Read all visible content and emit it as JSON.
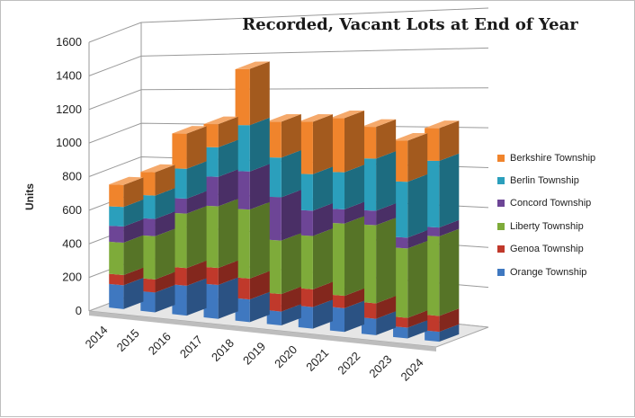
{
  "chart_data": {
    "type": "bar",
    "stacked": true,
    "three_d": true,
    "title": "Recorded, Vacant Lots at End of Year",
    "ylabel": "Units",
    "xlabel": "",
    "ylim": [
      0,
      1600
    ],
    "yticks": [
      "0",
      "200",
      "400",
      "600",
      "800",
      "1000",
      "1200",
      "1400",
      "1600"
    ],
    "grid": true,
    "legend_position": "right",
    "categories": [
      "2014",
      "2015",
      "2016",
      "2017",
      "2018",
      "2019",
      "2020",
      "2021",
      "2022",
      "2023",
      "2024"
    ],
    "series": [
      {
        "name": "Orange Township",
        "color": "#3f78c0",
        "values": [
          140,
          115,
          170,
          190,
          125,
          75,
          115,
          125,
          85,
          55,
          50
        ]
      },
      {
        "name": "Genoa Township",
        "color": "#c0392b",
        "values": [
          60,
          75,
          100,
          95,
          115,
          95,
          95,
          65,
          80,
          50,
          80
        ]
      },
      {
        "name": "Liberty Township",
        "color": "#7eab3a",
        "values": [
          190,
          250,
          310,
          345,
          380,
          290,
          285,
          380,
          405,
          355,
          400
        ]
      },
      {
        "name": "Concord Township",
        "color": "#6d4596",
        "values": [
          95,
          100,
          85,
          165,
          210,
          235,
          135,
          75,
          75,
          55,
          45
        ]
      },
      {
        "name": "Berlin Township",
        "color": "#2b9fbc",
        "values": [
          115,
          135,
          170,
          165,
          255,
          215,
          195,
          195,
          270,
          285,
          335
        ]
      },
      {
        "name": "Berkshire Township",
        "color": "#f0842c",
        "values": [
          130,
          135,
          200,
          130,
          310,
          195,
          280,
          285,
          165,
          210,
          165
        ]
      }
    ]
  }
}
